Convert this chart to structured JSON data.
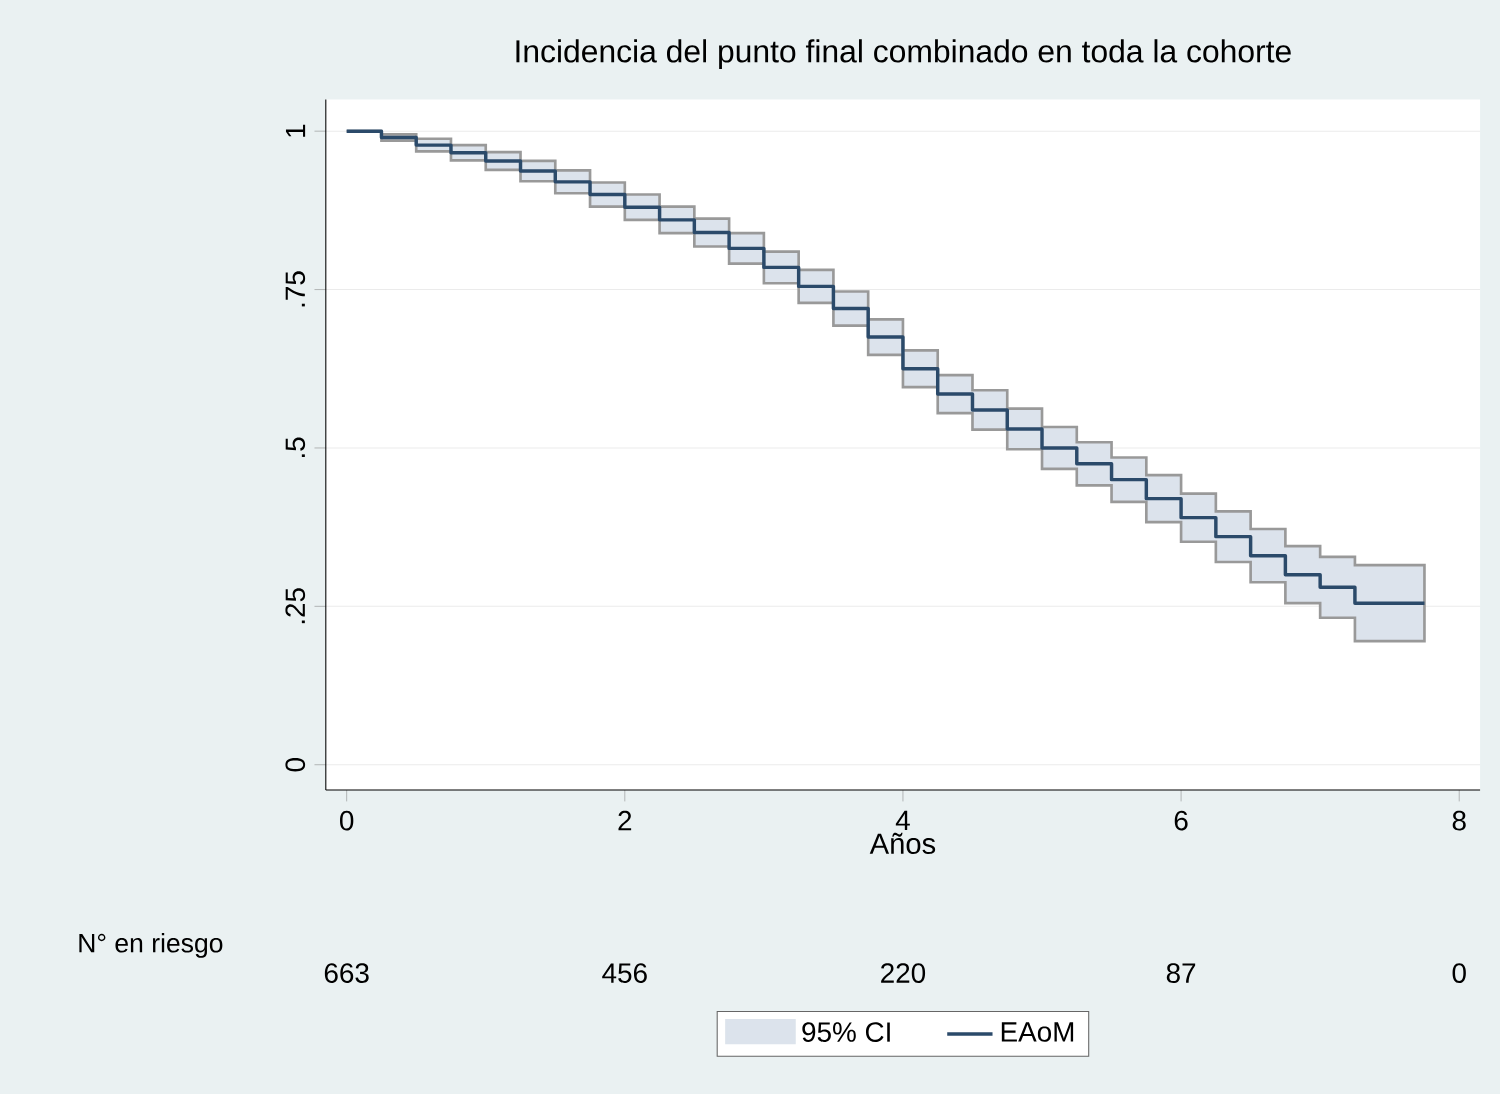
{
  "chart_data": {
    "type": "step",
    "title": "Incidencia del punto final combinado en toda la cohorte",
    "xlabel": "Años",
    "xlim": [
      -0.15,
      8.15
    ],
    "ylim": [
      -0.04,
      1.05
    ],
    "xticks": [
      0,
      2,
      4,
      6,
      8
    ],
    "yticks": [
      0,
      {
        "value": 0.25,
        "label": ".25"
      },
      {
        "value": 0.5,
        "label": ".5"
      },
      {
        "value": 0.75,
        "label": ".75"
      },
      1
    ],
    "grid": "y",
    "legend": "bottom",
    "series": [
      {
        "name": "EAoM",
        "color": "#2b4a6a",
        "x": [
          0,
          0.25,
          0.5,
          0.75,
          1,
          1.25,
          1.5,
          1.75,
          2,
          2.25,
          2.5,
          2.75,
          3,
          3.25,
          3.5,
          3.75,
          4,
          4.25,
          4.5,
          4.75,
          5,
          5.25,
          5.5,
          5.75,
          6,
          6.25,
          6.5,
          6.75,
          7,
          7.25,
          7.5,
          7.75
        ],
        "values": [
          1,
          0.99,
          0.978,
          0.966,
          0.953,
          0.937,
          0.92,
          0.9,
          0.88,
          0.86,
          0.84,
          0.815,
          0.785,
          0.755,
          0.72,
          0.675,
          0.625,
          0.585,
          0.56,
          0.53,
          0.5,
          0.475,
          0.45,
          0.42,
          0.39,
          0.36,
          0.33,
          0.3,
          0.28,
          0.255,
          0.255,
          0.255
        ],
        "lower": [
          1,
          0.985,
          0.968,
          0.954,
          0.939,
          0.921,
          0.902,
          0.881,
          0.86,
          0.839,
          0.818,
          0.791,
          0.76,
          0.729,
          0.693,
          0.647,
          0.596,
          0.555,
          0.529,
          0.498,
          0.467,
          0.441,
          0.415,
          0.383,
          0.352,
          0.32,
          0.288,
          0.255,
          0.232,
          0.195,
          0.195,
          0.195
        ],
        "upper": [
          1,
          0.995,
          0.988,
          0.978,
          0.967,
          0.953,
          0.938,
          0.919,
          0.9,
          0.881,
          0.862,
          0.839,
          0.81,
          0.781,
          0.747,
          0.703,
          0.654,
          0.615,
          0.591,
          0.562,
          0.533,
          0.509,
          0.485,
          0.457,
          0.428,
          0.4,
          0.372,
          0.345,
          0.328,
          0.315,
          0.315,
          0.315
        ]
      }
    ],
    "annotations": [
      "N° en riesgo",
      "663",
      "456",
      "220",
      "87",
      "0",
      "95% CI"
    ]
  }
}
